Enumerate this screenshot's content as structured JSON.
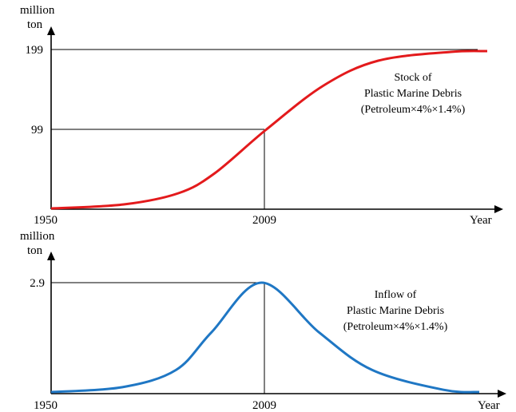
{
  "chart_data": [
    {
      "type": "line",
      "ylabel": [
        "million",
        "ton"
      ],
      "xlabel": "Year",
      "x_start_label": "1950",
      "x_mid_label": "2009",
      "y_ticks": [
        "199",
        "99"
      ],
      "annotation": [
        "Stock of",
        "Plastic Marine Debris",
        "(Petroleum×4%×1.4%)"
      ],
      "curve": "logistic",
      "x": [
        1950,
        1970,
        1985,
        1995,
        2009,
        2025,
        2040,
        2060,
        2070
      ],
      "y": [
        1,
        6,
        20,
        45,
        99,
        155,
        186,
        197,
        198
      ],
      "x_range": [
        1950,
        2070
      ],
      "y_max_reference": 199,
      "series_color": "#e31a1c"
    },
    {
      "type": "line",
      "ylabel": [
        "million",
        "ton"
      ],
      "xlabel": "Year",
      "x_start_label": "1950",
      "x_mid_label": "2009",
      "y_ticks": [
        "2.9"
      ],
      "annotation": [
        "Inflow of",
        "Plastic Marine Debris",
        "(Petroleum×4%×1.4%)"
      ],
      "curve": "bell",
      "x": [
        1950,
        1970,
        1985,
        1995,
        2009,
        2025,
        2040,
        2060,
        2070
      ],
      "y": [
        0.02,
        0.15,
        0.6,
        1.6,
        2.9,
        1.6,
        0.6,
        0.08,
        0.02
      ],
      "x_range": [
        1950,
        2070
      ],
      "series_color": "#1f77c4"
    }
  ]
}
